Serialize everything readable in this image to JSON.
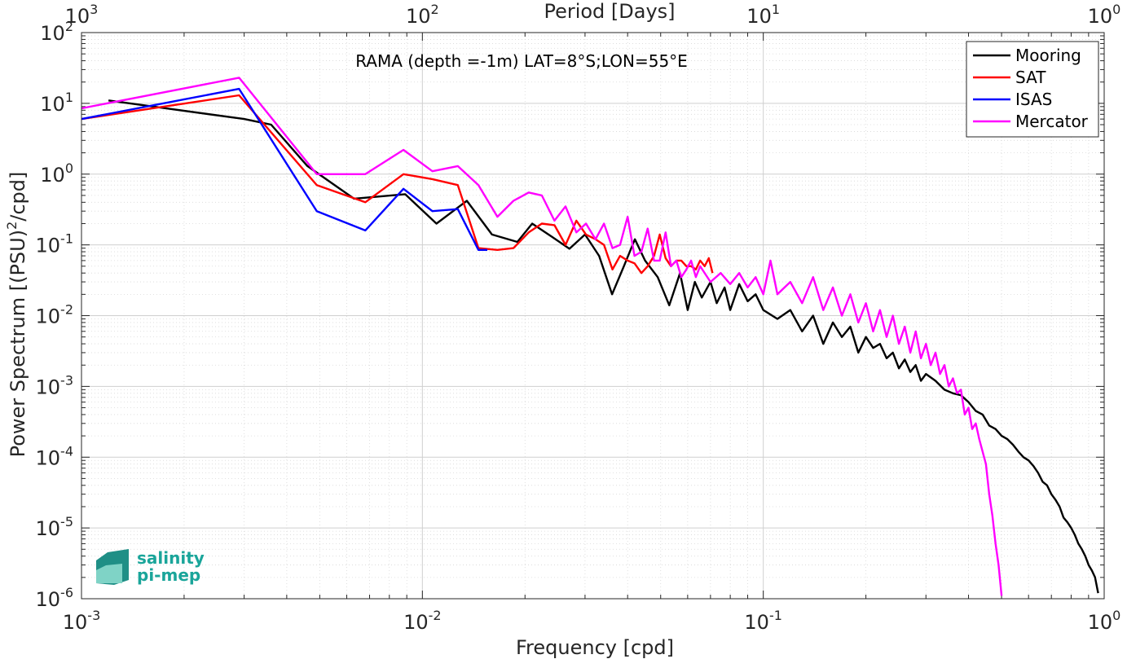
{
  "chart_data": {
    "type": "line",
    "title": "RAMA (depth =-1m) LAT=8°S;LON=55°E",
    "xlabel": "Frequency [cpd]",
    "ylabel_prefix": "Power Spectrum [(PSU)",
    "ylabel_exp": "2",
    "ylabel_suffix": "/cpd]",
    "top_axis_label": "Period [Days]",
    "x_scale": "log",
    "y_scale": "log",
    "xlim": [
      0.001,
      1
    ],
    "ylim": [
      1e-06,
      100
    ],
    "grid": true,
    "minor_grid": true,
    "legend_position": "top-right",
    "x_ticks": [
      {
        "base": "10",
        "exp": "-3"
      },
      {
        "base": "10",
        "exp": "-2"
      },
      {
        "base": "10",
        "exp": "-1"
      },
      {
        "base": "10",
        "exp": "0"
      }
    ],
    "y_ticks": [
      {
        "base": "10",
        "exp": "-6"
      },
      {
        "base": "10",
        "exp": "-5"
      },
      {
        "base": "10",
        "exp": "-4"
      },
      {
        "base": "10",
        "exp": "-3"
      },
      {
        "base": "10",
        "exp": "-2"
      },
      {
        "base": "10",
        "exp": "-1"
      },
      {
        "base": "10",
        "exp": "0"
      },
      {
        "base": "10",
        "exp": "1"
      },
      {
        "base": "10",
        "exp": "2"
      }
    ],
    "top_ticks": [
      {
        "base": "10",
        "exp": "3"
      },
      {
        "base": "10",
        "exp": "2"
      },
      {
        "base": "10",
        "exp": "1"
      },
      {
        "base": "10",
        "exp": "0"
      }
    ],
    "series": [
      {
        "name": "Mooring",
        "color": "#000000",
        "x": [
          0.0012,
          0.003,
          0.0036,
          0.0046,
          0.0063,
          0.0089,
          0.011,
          0.0135,
          0.016,
          0.019,
          0.021,
          0.024,
          0.027,
          0.03,
          0.033,
          0.036,
          0.039,
          0.042,
          0.045,
          0.049,
          0.053,
          0.057,
          0.06,
          0.063,
          0.066,
          0.07,
          0.073,
          0.077,
          0.08,
          0.085,
          0.09,
          0.095,
          0.1,
          0.11,
          0.12,
          0.13,
          0.14,
          0.15,
          0.16,
          0.17,
          0.18,
          0.19,
          0.2,
          0.21,
          0.22,
          0.23,
          0.24,
          0.25,
          0.26,
          0.27,
          0.28,
          0.29,
          0.3,
          0.32,
          0.34,
          0.36,
          0.38,
          0.4,
          0.42,
          0.44,
          0.46,
          0.48,
          0.5,
          0.52,
          0.54,
          0.56,
          0.58,
          0.6,
          0.62,
          0.64,
          0.66,
          0.68,
          0.7,
          0.72,
          0.74,
          0.76,
          0.78,
          0.8,
          0.82,
          0.84,
          0.86,
          0.88,
          0.9,
          0.92,
          0.94,
          0.96
        ],
        "y": [
          11,
          6,
          5,
          1.3,
          0.45,
          0.52,
          0.2,
          0.42,
          0.14,
          0.11,
          0.2,
          0.13,
          0.088,
          0.14,
          0.07,
          0.02,
          0.05,
          0.12,
          0.06,
          0.035,
          0.014,
          0.04,
          0.012,
          0.03,
          0.018,
          0.03,
          0.015,
          0.025,
          0.012,
          0.028,
          0.016,
          0.02,
          0.012,
          0.009,
          0.012,
          0.006,
          0.01,
          0.004,
          0.008,
          0.005,
          0.007,
          0.003,
          0.005,
          0.0035,
          0.004,
          0.0025,
          0.003,
          0.0018,
          0.0024,
          0.0016,
          0.002,
          0.0012,
          0.0015,
          0.0012,
          0.0009,
          0.0008,
          0.00075,
          0.0006,
          0.00045,
          0.0004,
          0.00028,
          0.00025,
          0.0002,
          0.00018,
          0.00015,
          0.00012,
          0.0001,
          9e-05,
          7.5e-05,
          6e-05,
          4.5e-05,
          4e-05,
          3e-05,
          2.5e-05,
          2e-05,
          1.4e-05,
          1.2e-05,
          1e-05,
          8e-06,
          6e-06,
          5e-06,
          4e-06,
          3e-06,
          2.5e-06,
          2e-06,
          1.2e-06
        ]
      },
      {
        "name": "SAT",
        "color": "#ff0000",
        "x": [
          0.001,
          0.0029,
          0.0049,
          0.0068,
          0.0088,
          0.0107,
          0.0127,
          0.0146,
          0.0166,
          0.0185,
          0.0205,
          0.0224,
          0.0244,
          0.0263,
          0.0283,
          0.0302,
          0.0322,
          0.0341,
          0.0361,
          0.038,
          0.04,
          0.0419,
          0.0439,
          0.0458,
          0.0478,
          0.0497,
          0.0517,
          0.0536,
          0.0556,
          0.0575,
          0.0595,
          0.0614,
          0.0634,
          0.0653,
          0.0673,
          0.0692,
          0.071
        ],
        "y": [
          6,
          13,
          0.7,
          0.4,
          1.0,
          0.85,
          0.7,
          0.09,
          0.085,
          0.09,
          0.15,
          0.2,
          0.19,
          0.1,
          0.22,
          0.14,
          0.12,
          0.1,
          0.045,
          0.07,
          0.06,
          0.055,
          0.04,
          0.05,
          0.07,
          0.14,
          0.065,
          0.05,
          0.06,
          0.06,
          0.05,
          0.05,
          0.045,
          0.06,
          0.05,
          0.065,
          0.04
        ]
      },
      {
        "name": "ISAS",
        "color": "#0000ff",
        "x": [
          0.001,
          0.0029,
          0.0049,
          0.0068,
          0.0088,
          0.0107,
          0.0127,
          0.0146,
          0.0155
        ],
        "y": [
          6,
          16,
          0.3,
          0.16,
          0.62,
          0.3,
          0.32,
          0.085,
          0.085
        ]
      },
      {
        "name": "Mercator",
        "color": "#ff00ff",
        "x": [
          0.001,
          0.0029,
          0.0049,
          0.0068,
          0.0088,
          0.0107,
          0.0127,
          0.0146,
          0.0166,
          0.0185,
          0.0205,
          0.0224,
          0.0244,
          0.0263,
          0.0283,
          0.0302,
          0.0322,
          0.0341,
          0.0361,
          0.038,
          0.04,
          0.0419,
          0.0439,
          0.0458,
          0.0478,
          0.0497,
          0.0517,
          0.0536,
          0.0556,
          0.0575,
          0.0595,
          0.0614,
          0.0634,
          0.0653,
          0.07,
          0.075,
          0.08,
          0.085,
          0.09,
          0.095,
          0.1,
          0.105,
          0.11,
          0.12,
          0.13,
          0.14,
          0.15,
          0.16,
          0.17,
          0.18,
          0.19,
          0.2,
          0.21,
          0.22,
          0.23,
          0.24,
          0.25,
          0.26,
          0.27,
          0.28,
          0.29,
          0.3,
          0.31,
          0.32,
          0.33,
          0.34,
          0.35,
          0.36,
          0.37,
          0.38,
          0.39,
          0.4,
          0.41,
          0.42,
          0.43,
          0.44,
          0.45,
          0.46,
          0.47,
          0.48,
          0.49,
          0.5
        ],
        "y": [
          8.5,
          23,
          1.0,
          1.0,
          2.2,
          1.1,
          1.3,
          0.7,
          0.25,
          0.42,
          0.55,
          0.5,
          0.22,
          0.35,
          0.15,
          0.2,
          0.12,
          0.2,
          0.09,
          0.1,
          0.25,
          0.07,
          0.08,
          0.17,
          0.06,
          0.06,
          0.15,
          0.05,
          0.06,
          0.035,
          0.045,
          0.06,
          0.035,
          0.05,
          0.03,
          0.04,
          0.028,
          0.04,
          0.025,
          0.035,
          0.02,
          0.06,
          0.02,
          0.03,
          0.015,
          0.035,
          0.012,
          0.025,
          0.01,
          0.02,
          0.008,
          0.015,
          0.006,
          0.012,
          0.005,
          0.01,
          0.004,
          0.007,
          0.003,
          0.006,
          0.0025,
          0.004,
          0.002,
          0.003,
          0.0015,
          0.002,
          0.001,
          0.0013,
          0.0008,
          0.0009,
          0.0004,
          0.0005,
          0.00025,
          0.0003,
          0.00018,
          0.00012,
          8e-05,
          3e-05,
          1.5e-05,
          6e-06,
          3e-06,
          1.1e-06
        ]
      }
    ]
  },
  "logo": {
    "line1": "salinity",
    "line2": "pi-mep"
  }
}
